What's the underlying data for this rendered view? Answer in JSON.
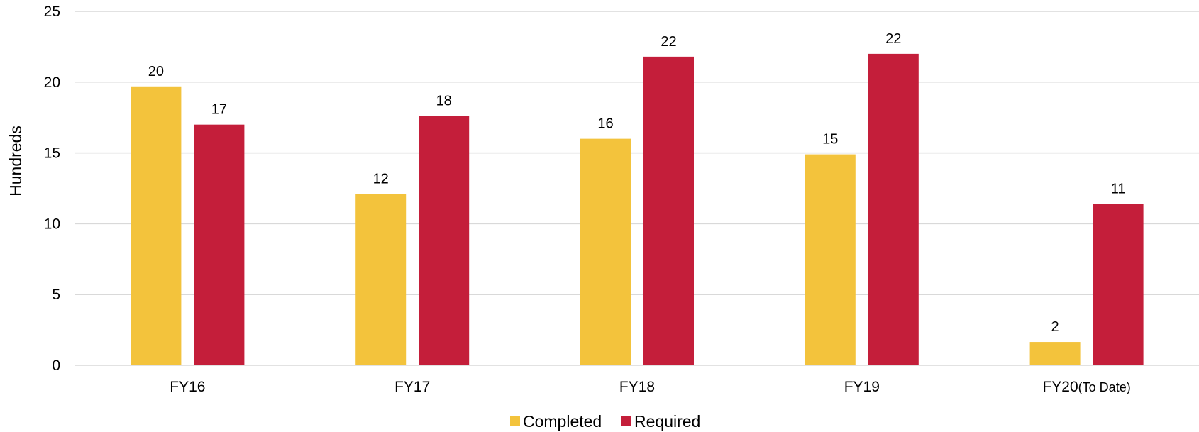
{
  "chart_data": {
    "type": "bar",
    "categories": [
      "FY16",
      "FY17",
      "FY18",
      "FY19",
      "FY20(To Date)"
    ],
    "category_parts": [
      [
        "FY16",
        ""
      ],
      [
        "FY17",
        ""
      ],
      [
        "FY18",
        ""
      ],
      [
        "FY19",
        ""
      ],
      [
        "FY20",
        "(To Date)"
      ]
    ],
    "series": [
      {
        "name": "Completed",
        "color": "#F3C33C",
        "values": [
          19.7,
          12.1,
          16.0,
          14.9,
          1.65
        ],
        "labels": [
          "20",
          "12",
          "16",
          "15",
          "2"
        ]
      },
      {
        "name": "Required",
        "color": "#C41E3A",
        "values": [
          17.0,
          17.6,
          21.8,
          22.0,
          11.4
        ],
        "labels": [
          "17",
          "18",
          "22",
          "22",
          "11"
        ]
      }
    ],
    "title": "",
    "xlabel": "",
    "ylabel": "Hundreds",
    "ylim": [
      0,
      25
    ],
    "yticks": [
      0,
      5,
      10,
      15,
      20,
      25
    ],
    "grid": true,
    "legend_position": "bottom-center"
  }
}
